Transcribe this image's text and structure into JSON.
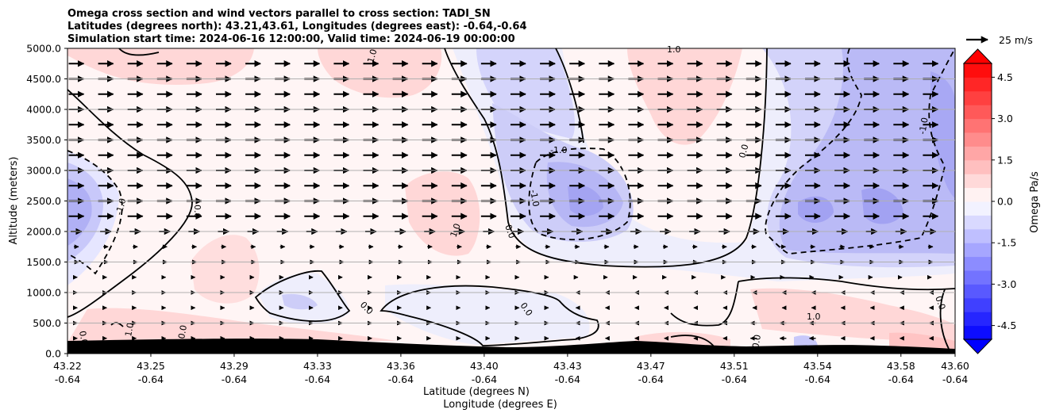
{
  "chart_data": {
    "type": "contour",
    "title": "Omega cross section and wind vectors parallel to cross section: TADI_SN",
    "subtitle_lines": [
      "Latitudes (degrees north): 43.21,43.61, Longitudes (degrees east): -0.64,-0.64",
      "Simulation start time: 2024-06-16 12:00:00, Valid time: 2024-06-19 00:00:00"
    ],
    "ylabel": "Altitude (meters)",
    "xlabel_line1": "Latitude (degrees N)",
    "xlabel_line2": "Longitude (degrees E)",
    "ylim": [
      0,
      5000
    ],
    "yticks": [
      "0.0",
      "500.0",
      "1000.0",
      "1500.0",
      "2000.0",
      "2500.0",
      "3000.0",
      "3500.0",
      "4000.0",
      "4500.0",
      "5000.0"
    ],
    "xticks": [
      {
        "lat": "43.22",
        "lon": "-0.64"
      },
      {
        "lat": "43.25",
        "lon": "-0.64"
      },
      {
        "lat": "43.29",
        "lon": "-0.64"
      },
      {
        "lat": "43.33",
        "lon": "-0.64"
      },
      {
        "lat": "43.36",
        "lon": "-0.64"
      },
      {
        "lat": "43.40",
        "lon": "-0.64"
      },
      {
        "lat": "43.43",
        "lon": "-0.64"
      },
      {
        "lat": "43.47",
        "lon": "-0.64"
      },
      {
        "lat": "43.51",
        "lon": "-0.64"
      },
      {
        "lat": "43.54",
        "lon": "-0.64"
      },
      {
        "lat": "43.58",
        "lon": "-0.64"
      },
      {
        "lat": "43.60",
        "lon": "-0.64"
      }
    ],
    "grid": {
      "horizontal": true,
      "vertical": false
    },
    "colorbar": {
      "label": "Omega Pa/s",
      "range": [
        -5,
        5
      ],
      "ticks": [
        "-4.5",
        "-3.0",
        "-1.5",
        "0.0",
        "1.5",
        "3.0",
        "4.5"
      ],
      "extend": "both",
      "colormap": "bwr"
    },
    "quiver_key": {
      "label": "25 m/s",
      "speed": 25
    },
    "contour_labels": [
      "-1.0",
      "0.0",
      "1.0"
    ],
    "terrain_color": "#000000"
  }
}
